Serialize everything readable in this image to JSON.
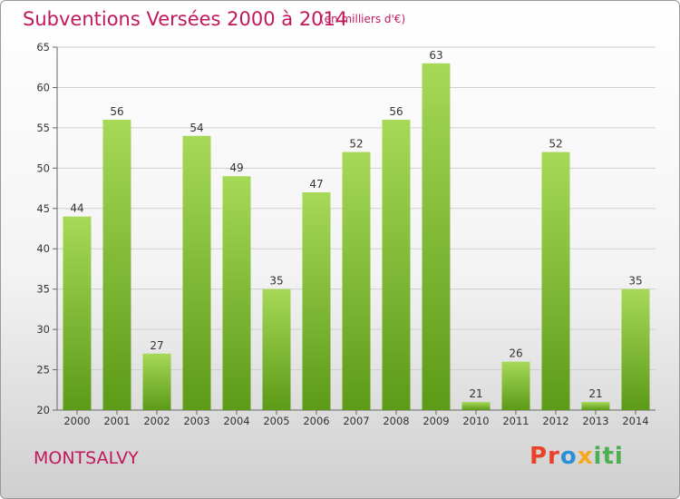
{
  "header": {
    "title": "Subventions Versées 2000 à 2014",
    "unit": "(en milliers d'€)"
  },
  "footer": {
    "place": "MONTSALVY",
    "logo_parts": [
      "Pr",
      "o",
      "x",
      "iti"
    ]
  },
  "colors": {
    "title": "#c2185b",
    "bar_top": "#a6d957",
    "bar_bottom": "#5c9a18",
    "grid": "#d0d0d0"
  },
  "chart_data": {
    "type": "bar",
    "title": "Subventions Versées 2000 à 2014",
    "subtitle": "(en milliers d'€)",
    "xlabel": "",
    "ylabel": "",
    "categories": [
      "2000",
      "2001",
      "2002",
      "2003",
      "2004",
      "2005",
      "2006",
      "2007",
      "2008",
      "2009",
      "2010",
      "2011",
      "2012",
      "2013",
      "2014"
    ],
    "values": [
      44,
      56,
      27,
      54,
      49,
      35,
      47,
      52,
      56,
      63,
      21,
      26,
      52,
      21,
      35
    ],
    "ylim": [
      20,
      65
    ],
    "yticks": [
      20,
      25,
      30,
      35,
      40,
      45,
      50,
      55,
      60,
      65
    ],
    "grid": true,
    "data_labels": true
  }
}
